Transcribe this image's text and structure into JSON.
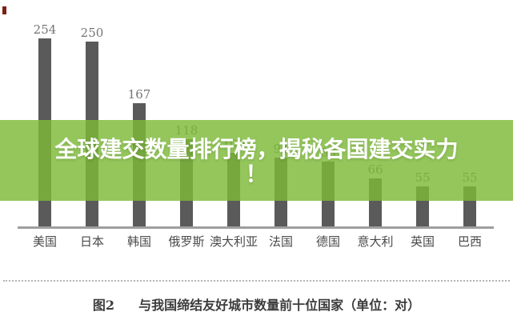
{
  "banner": {
    "title_line1": "全球建交数量排行榜，揭秘各国建交实力",
    "title_line2": "！",
    "bg_rgba": "rgba(124,186,56,0.82)",
    "text_color": "#ffffff"
  },
  "caption": {
    "figure_label": "图2",
    "text": "与我国缔结友好城市数量前十位国家（单位：对）"
  },
  "chart_data": {
    "type": "bar",
    "categories": [
      "美国",
      "日本",
      "韩国",
      "俄罗斯",
      "澳大利亚",
      "法国",
      "德国",
      "意大利",
      "英国",
      "巴西"
    ],
    "values": [
      254,
      250,
      167,
      118,
      100,
      94,
      88,
      66,
      55,
      55
    ],
    "value_labels": [
      "254",
      "250",
      "167",
      "118",
      "100",
      "94",
      "88",
      "66",
      "55",
      "55"
    ],
    "title": "与我国缔结友好城市数量前十位国家",
    "unit": "对",
    "xlabel": "",
    "ylabel": "",
    "ylim": [
      0,
      275
    ],
    "grid": false,
    "legend": "none",
    "bar_color": "#5a5a5a",
    "value_label_color": "#757575",
    "axis_color": "#9e9e9e"
  }
}
